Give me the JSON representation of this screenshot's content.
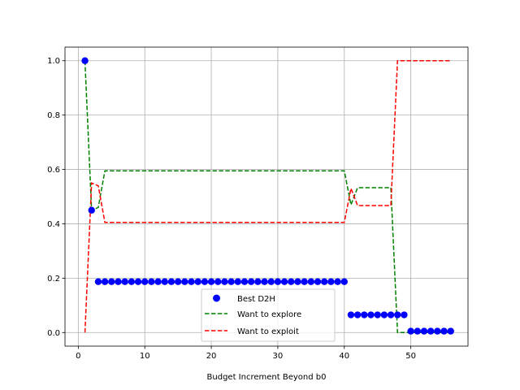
{
  "chart_data": {
    "type": "scatter",
    "xlabel": "Budget Increment Beyond b0",
    "ylabel": "",
    "title": "",
    "xlim": [
      -2,
      58.6
    ],
    "ylim": [
      -0.05,
      1.05
    ],
    "x_ticks": [
      0,
      10,
      20,
      30,
      40,
      50
    ],
    "y_ticks": [
      0.0,
      0.2,
      0.4,
      0.6,
      0.8,
      1.0
    ],
    "grid": true,
    "legend_position": "lower center",
    "series": [
      {
        "name": "Best D2H",
        "kind": "scatter",
        "color": "#0000ff",
        "segments": [
          {
            "x_from": 1,
            "x_to": 1,
            "y": 1.0
          },
          {
            "x_from": 2,
            "x_to": 2,
            "y": 0.45
          },
          {
            "x_from": 3,
            "x_to": 40,
            "y": 0.187
          },
          {
            "x_from": 41,
            "x_to": 49,
            "y": 0.065
          },
          {
            "x_from": 50,
            "x_to": 56,
            "y": 0.005
          }
        ]
      },
      {
        "name": "Want to explore",
        "kind": "line",
        "style": "dashed",
        "color": "#008000",
        "x": [
          1,
          2,
          3,
          4,
          40,
          41,
          42,
          47,
          48,
          56
        ],
        "y": [
          1.0,
          0.45,
          0.46,
          0.595,
          0.595,
          0.47,
          0.533,
          0.533,
          0.0,
          0.0
        ]
      },
      {
        "name": "Want to exploit",
        "kind": "line",
        "style": "dashed",
        "color": "#ff0000",
        "x": [
          1,
          2,
          3,
          4,
          40,
          41,
          42,
          47,
          48,
          56
        ],
        "y": [
          0.0,
          0.55,
          0.54,
          0.405,
          0.405,
          0.53,
          0.467,
          0.467,
          1.0,
          1.0
        ]
      }
    ]
  }
}
